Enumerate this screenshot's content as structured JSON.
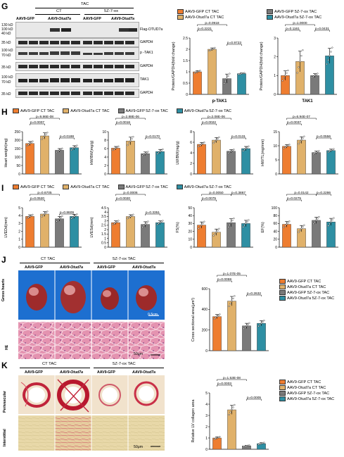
{
  "colors": {
    "gfp_ct": "#f07f2e",
    "otud7a_ct": "#d9a35a",
    "gfp_5z": "#6e6e6e",
    "otud7a_5z": "#2a7f96",
    "bar_orange": "#ee7d30",
    "bar_tan": "#e0b16a",
    "bar_gray": "#7a7a7a",
    "bar_teal": "#2e8fa3"
  },
  "panels": {
    "G": {
      "label": "G",
      "tac": "TAC",
      "ct": "CT",
      "z": "5Z-7-ox",
      "lanes": [
        "AAV9-GFP",
        "AAV9-Otud7a",
        "AAV9-GFP",
        "AAV9-Otud7a"
      ],
      "mw_labels": [
        "130 kD",
        "100 kD",
        "40 kD",
        "35 kD",
        "100 kD",
        "70 kD",
        "35 kD",
        "100 kD",
        "70 kD",
        "35 kD"
      ],
      "blots": [
        "Flag-OTUD7a",
        "GAPDH",
        "p -TAK1",
        "GAPDH",
        "TAK1",
        "GAPDH"
      ],
      "legend_left": [
        "AAV9-GFP CT TAC",
        "AAV9-Otud7a CT TAC"
      ],
      "legend_right": [
        "AAV9-GFP 5Z-7-ox TAC",
        "AAV9-Otud7a 5Z-7-ox TAC"
      ]
    },
    "H": {
      "label": "H"
    },
    "I": {
      "label": "I"
    },
    "J": {
      "label": "J",
      "ct": "CT TAC",
      "z": "5Z-7-ox TAC",
      "lanes": [
        "AAV9-GFP",
        "AAV9-Otud7a",
        "AAV9-GFP",
        "AAV9-Otud7a"
      ],
      "row1": "Gross hearts",
      "row2": "HE",
      "scale1": "0.5cm",
      "scale2": "50μm"
    },
    "K": {
      "label": "K",
      "ct": "CT TAC",
      "z": "5Z-7-ox TAC",
      "lanes": [
        "AAV9-GFP",
        "AAV9-Otud7a",
        "AAV9-GFP",
        "AAV9-Otud7a"
      ],
      "row1": "Perivascular",
      "row2": "Interstitial",
      "scale": "50μm"
    },
    "legend4": [
      "AAV9-GFP CT TAC",
      "AAV9-Otud7a CT TAC",
      "AAV9-GFP 5Z-7-ox TAC",
      "AAV9-Otud7a 5Z-7-ox TAC"
    ]
  },
  "chart_data": [
    {
      "id": "G1",
      "type": "bar",
      "ylabel": "Protein/GAPDH(fold change)",
      "xlabel": "p-TAK1",
      "ylim": [
        0,
        2.5
      ],
      "ticks": [
        0.0,
        0.5,
        1.0,
        1.5,
        2.0,
        2.5
      ],
      "values": [
        1.0,
        2.0,
        0.7,
        0.92
      ],
      "errors": [
        0.05,
        0.06,
        0.2,
        0.03
      ],
      "brackets": [
        {
          "a": 0,
          "b": 2,
          "text": "p=0.0918",
          "level": 2
        },
        {
          "a": 0,
          "b": 1,
          "text": "p=0.2221",
          "level": 1
        },
        {
          "a": 2,
          "b": 3,
          "text": "p=0.9723",
          "level": 0
        }
      ]
    },
    {
      "id": "G2",
      "type": "bar",
      "ylabel": "Protein/GAPDH(fold change)",
      "xlabel": "TAK1",
      "ylim": [
        0,
        3
      ],
      "ticks": [
        0,
        1,
        2,
        3
      ],
      "values": [
        1.0,
        1.75,
        1.0,
        2.05
      ],
      "errors": [
        0.25,
        0.55,
        0.1,
        0.4
      ],
      "brackets": [
        {
          "a": 0,
          "b": 2,
          "text": "p=1.0000",
          "level": 2
        },
        {
          "a": 0,
          "b": 1,
          "text": "p=0.1161",
          "level": 1
        },
        {
          "a": 2,
          "b": 3,
          "text": "p=0.0431",
          "level": 1
        }
      ]
    },
    {
      "id": "H1",
      "type": "bar",
      "ylabel": "Heart weight(mg)",
      "ylim": [
        0,
        250
      ],
      "ticks": [
        0,
        50,
        100,
        150,
        200,
        250
      ],
      "values": [
        180,
        225,
        140,
        155
      ],
      "errors": [
        12,
        18,
        10,
        12
      ],
      "brackets": [
        {
          "a": 0,
          "b": 2,
          "text": "p=9.86E-08",
          "level": 2
        },
        {
          "a": 0,
          "b": 1,
          "text": "p=0.0007",
          "level": 1
        },
        {
          "a": 2,
          "b": 3,
          "text": "p=0.0188",
          "level": 0
        }
      ]
    },
    {
      "id": "H2",
      "type": "bar",
      "ylabel": "HW/BW(mg/g)",
      "ylim": [
        0,
        10
      ],
      "ticks": [
        0,
        2,
        4,
        6,
        8,
        10
      ],
      "values": [
        6.1,
        7.8,
        4.8,
        5.3
      ],
      "errors": [
        0.4,
        0.9,
        0.4,
        0.5
      ],
      "brackets": [
        {
          "a": 0,
          "b": 2,
          "text": "p=2.88E-06",
          "level": 2
        },
        {
          "a": 0,
          "b": 1,
          "text": "p=0.0016",
          "level": 1
        },
        {
          "a": 2,
          "b": 3,
          "text": "p=0.0170",
          "level": 0
        }
      ]
    },
    {
      "id": "H3",
      "type": "bar",
      "ylabel": "LW/BW(mg/g)",
      "ylim": [
        0,
        8
      ],
      "ticks": [
        0,
        2,
        4,
        6,
        8
      ],
      "values": [
        5.6,
        6.4,
        4.3,
        4.8
      ],
      "errors": [
        0.35,
        0.5,
        0.3,
        0.4
      ],
      "brackets": [
        {
          "a": 0,
          "b": 2,
          "text": "p=2.08E-06",
          "level": 2
        },
        {
          "a": 0,
          "b": 1,
          "text": "p=0.0022",
          "level": 1
        },
        {
          "a": 2,
          "b": 3,
          "text": "p=0.0131",
          "level": 0
        }
      ]
    },
    {
      "id": "H4",
      "type": "bar",
      "ylabel": "HW/TL(mg/mm)",
      "ylim": [
        0,
        15
      ],
      "ticks": [
        0,
        5,
        10,
        15
      ],
      "values": [
        9.8,
        12.0,
        7.6,
        8.3
      ],
      "errors": [
        0.6,
        1.2,
        0.5,
        0.5
      ],
      "brackets": [
        {
          "a": 0,
          "b": 2,
          "text": "p=6.94E-07",
          "level": 2
        },
        {
          "a": 0,
          "b": 1,
          "text": "p=0.0037",
          "level": 1
        },
        {
          "a": 2,
          "b": 3,
          "text": "p=0.0556",
          "level": 0
        }
      ]
    },
    {
      "id": "I1",
      "type": "bar",
      "ylabel": "LVEDd(mm)",
      "ylim": [
        0,
        5
      ],
      "ticks": [
        0,
        1,
        2,
        3,
        4,
        5
      ],
      "values": [
        3.9,
        4.2,
        3.6,
        3.9
      ],
      "errors": [
        0.2,
        0.3,
        0.3,
        0.25
      ],
      "brackets": [
        {
          "a": 0,
          "b": 2,
          "text": "p=0.6705",
          "level": 2
        },
        {
          "a": 0,
          "b": 1,
          "text": "p=0.0520",
          "level": 1
        },
        {
          "a": 2,
          "b": 3,
          "text": "p=0.8609",
          "level": 0
        }
      ]
    },
    {
      "id": "I2",
      "type": "bar",
      "ylabel": "LVESd(mm)",
      "ylim": [
        0,
        4.5
      ],
      "ticks": [
        0,
        0.5,
        1.0,
        1.5,
        2.0,
        2.5,
        3.0,
        3.5,
        4.0,
        4.5
      ],
      "values": [
        2.8,
        3.5,
        2.6,
        2.8
      ],
      "errors": [
        0.2,
        0.2,
        0.3,
        0.2
      ],
      "brackets": [
        {
          "a": 0,
          "b": 2,
          "text": "p=0.0006",
          "level": 2
        },
        {
          "a": 0,
          "b": 1,
          "text": "p=0.0020",
          "level": 1
        },
        {
          "a": 2,
          "b": 3,
          "text": "p=0.3351",
          "level": 0
        }
      ]
    },
    {
      "id": "I3",
      "type": "bar",
      "ylabel": "FS(%)",
      "ylim": [
        0,
        50
      ],
      "ticks": [
        0,
        10,
        20,
        30,
        40,
        50
      ],
      "values": [
        28,
        19,
        31,
        30
      ],
      "errors": [
        4,
        4,
        5,
        4
      ],
      "brackets": [
        {
          "a": 0,
          "b": 2,
          "text": "p=0.0050",
          "level": 2
        },
        {
          "a": 0,
          "b": 1,
          "text": "p=0.0075",
          "level": 1
        },
        {
          "a": 2,
          "b": 3,
          "text": "p=0.3867",
          "level": 2
        }
      ]
    },
    {
      "id": "I4",
      "type": "bar",
      "ylabel": "EF(%)",
      "ylim": [
        0,
        100
      ],
      "ticks": [
        0,
        20,
        40,
        60,
        80,
        100
      ],
      "values": [
        58,
        47,
        68,
        64
      ],
      "errors": [
        7,
        8,
        8,
        9
      ],
      "brackets": [
        {
          "a": 0,
          "b": 2,
          "text": "p=0.0142",
          "level": 2
        },
        {
          "a": 0,
          "b": 1,
          "text": "p=0.0275",
          "level": 1
        },
        {
          "a": 2,
          "b": 3,
          "text": "p=0.2286",
          "level": 2
        }
      ]
    },
    {
      "id": "J1",
      "type": "bar",
      "ylabel": "Cross sectional area(μm²)",
      "ylim": [
        0,
        600
      ],
      "ticks": [
        0,
        200,
        400,
        600
      ],
      "values": [
        330,
        480,
        240,
        265
      ],
      "errors": [
        20,
        45,
        25,
        25
      ],
      "brackets": [
        {
          "a": 0,
          "b": 2,
          "text": "p=1.07E-05",
          "level": 2
        },
        {
          "a": 0,
          "b": 1,
          "text": "p=0.0059",
          "level": 1
        },
        {
          "a": 2,
          "b": 3,
          "text": "p=0.2632",
          "level": 0
        }
      ]
    },
    {
      "id": "K1",
      "type": "bar",
      "ylabel": "Relative LV collagen area",
      "ylim": [
        0,
        5
      ],
      "ticks": [
        0,
        1,
        2,
        3,
        4,
        5
      ],
      "values": [
        1.0,
        3.5,
        0.3,
        0.5
      ],
      "errors": [
        0.1,
        0.4,
        0.05,
        0.08
      ],
      "brackets": [
        {
          "a": 0,
          "b": 2,
          "text": "p=1.53E-08",
          "level": 2
        },
        {
          "a": 0,
          "b": 1,
          "text": "p=0.0003",
          "level": 1
        },
        {
          "a": 2,
          "b": 3,
          "text": "p=0.0005",
          "level": 0
        }
      ]
    }
  ]
}
